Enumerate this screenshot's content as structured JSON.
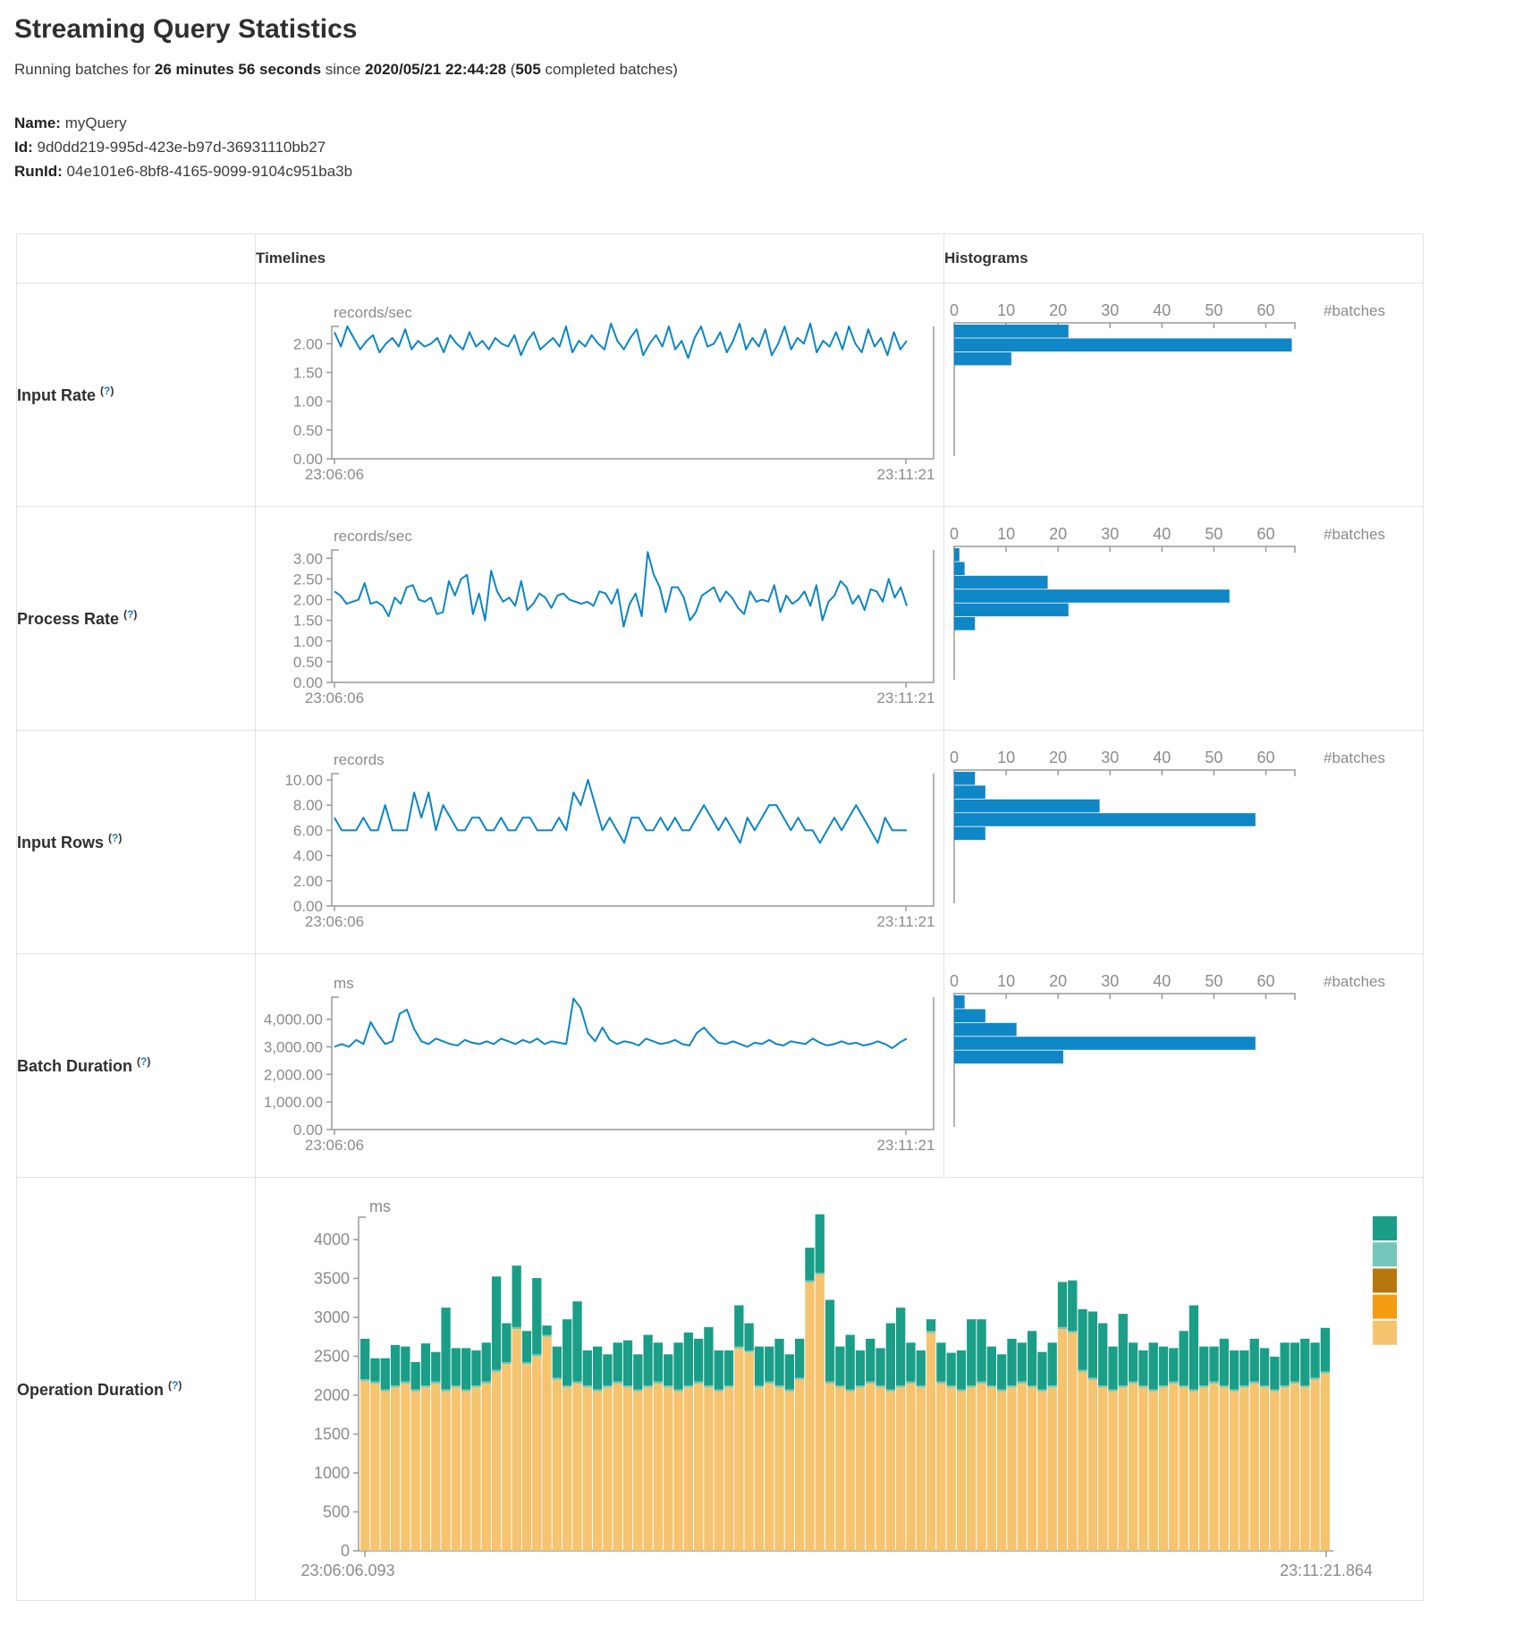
{
  "page": {
    "title": "Streaming Query Statistics"
  },
  "summary": {
    "prefix": "Running batches for ",
    "duration": "26 minutes 56 seconds",
    "middle": " since ",
    "start_time": "2020/05/21 22:44:28",
    "paren_open": " (",
    "completed_count": "505",
    "suffix": " completed batches)"
  },
  "query": {
    "name_label": "Name:",
    "name": " myQuery",
    "id_label": "Id:",
    "id": " 9d0dd219-995d-423e-b97d-36931110bb27",
    "runid_label": "RunId:",
    "runid": " 04e101e6-8bf8-4165-9099-9104c951ba3b"
  },
  "table": {
    "timelines_header": "Timelines",
    "histograms_header": "Histograms",
    "help_open": "(",
    "help_q": "?",
    "help_close": ")"
  },
  "rows": [
    {
      "label": "Input Rate "
    },
    {
      "label": "Process Rate "
    },
    {
      "label": "Input Rows "
    },
    {
      "label": "Batch Duration "
    },
    {
      "label": "Operation Duration "
    }
  ],
  "colors": {
    "line": "#0c85c5",
    "bar": "#0f86c6",
    "axis": "#999999",
    "tick_text": "#8b8b8b",
    "op_base": "#f6c36e",
    "op_sliver": "#74c7b8",
    "op_top": "#1a9e87",
    "legend": [
      "#1a9e87",
      "#74c7b8",
      "#b8770e",
      "#f39c12",
      "#f6c36e"
    ]
  },
  "chart_data": [
    {
      "name": "input-rate",
      "type": "line",
      "unit_label": "records/sec",
      "x_start": "23:06:06",
      "x_end": "23:11:21",
      "y_domain": [
        0,
        2.3
      ],
      "y_ticks": [
        [
          0,
          "0.00"
        ],
        [
          0.5,
          "0.50"
        ],
        [
          1,
          "1.00"
        ],
        [
          1.5,
          "1.50"
        ],
        [
          2,
          "2.00"
        ]
      ],
      "values": [
        2.2,
        1.95,
        2.3,
        2.1,
        1.9,
        2.05,
        2.15,
        1.85,
        2.0,
        2.1,
        1.95,
        2.25,
        1.9,
        2.05,
        1.95,
        2.0,
        2.1,
        1.85,
        2.15,
        2.0,
        1.9,
        2.2,
        1.95,
        2.05,
        1.9,
        2.1,
        2.0,
        1.95,
        2.15,
        1.8,
        2.05,
        2.2,
        1.9,
        2.0,
        2.1,
        1.95,
        2.3,
        1.85,
        2.05,
        1.95,
        2.15,
        2.0,
        1.9,
        2.35,
        2.05,
        1.9,
        2.1,
        2.25,
        1.8,
        2.0,
        2.15,
        1.95,
        2.3,
        1.9,
        2.05,
        1.75,
        2.1,
        2.3,
        1.95,
        2.0,
        2.2,
        1.85,
        2.05,
        2.35,
        1.9,
        2.1,
        1.95,
        2.25,
        1.8,
        2.0,
        2.3,
        1.9,
        2.1,
        2.0,
        2.35,
        1.85,
        2.05,
        1.95,
        2.2,
        1.9,
        2.3,
        2.0,
        1.85,
        2.25,
        1.95,
        2.1,
        1.8,
        2.2,
        1.9,
        2.05
      ],
      "histogram": {
        "type": "bar",
        "orientation": "horizontal",
        "axis_label": "#batches",
        "x_ticks": [
          0,
          10,
          20,
          30,
          40,
          50,
          60
        ],
        "x_max": 65.6,
        "values": [
          22,
          65,
          11
        ]
      }
    },
    {
      "name": "process-rate",
      "type": "line",
      "unit_label": "records/sec",
      "x_start": "23:06:06",
      "x_end": "23:11:21",
      "y_domain": [
        0,
        3.2
      ],
      "y_ticks": [
        [
          0,
          "0.00"
        ],
        [
          0.5,
          "0.50"
        ],
        [
          1,
          "1.00"
        ],
        [
          1.5,
          "1.50"
        ],
        [
          2,
          "2.00"
        ],
        [
          2.5,
          "2.50"
        ],
        [
          3,
          "3.00"
        ]
      ],
      "values": [
        2.2,
        2.1,
        1.9,
        1.95,
        2.0,
        2.4,
        1.9,
        1.95,
        1.85,
        1.6,
        2.05,
        1.9,
        2.3,
        2.35,
        2.0,
        1.95,
        2.05,
        1.65,
        1.7,
        2.45,
        2.1,
        2.5,
        2.6,
        1.65,
        2.15,
        1.5,
        2.7,
        2.2,
        1.95,
        2.05,
        1.85,
        2.45,
        1.75,
        1.9,
        2.15,
        2.05,
        1.8,
        2.1,
        2.15,
        2.0,
        1.95,
        1.9,
        1.95,
        1.85,
        2.2,
        2.15,
        1.9,
        2.25,
        1.35,
        1.9,
        2.15,
        1.6,
        3.15,
        2.6,
        2.3,
        1.7,
        2.3,
        2.3,
        2.05,
        1.5,
        1.7,
        2.1,
        2.2,
        2.3,
        1.95,
        2.2,
        2.05,
        1.8,
        1.65,
        2.2,
        1.95,
        2.0,
        1.95,
        2.35,
        1.7,
        2.1,
        1.9,
        2.0,
        2.2,
        1.85,
        2.35,
        1.5,
        1.95,
        2.1,
        2.45,
        2.3,
        1.9,
        2.1,
        1.75,
        2.25,
        2.2,
        1.95,
        2.5,
        2.05,
        2.3,
        1.85
      ],
      "histogram": {
        "type": "bar",
        "orientation": "horizontal",
        "axis_label": "#batches",
        "x_ticks": [
          0,
          10,
          20,
          30,
          40,
          50,
          60
        ],
        "x_max": 65.6,
        "values": [
          1,
          2,
          18,
          53,
          22,
          4
        ]
      }
    },
    {
      "name": "input-rows",
      "type": "line",
      "unit_label": "records",
      "x_start": "23:06:06",
      "x_end": "23:11:21",
      "y_domain": [
        0,
        10.5
      ],
      "y_ticks": [
        [
          0,
          "0.00"
        ],
        [
          2,
          "2.00"
        ],
        [
          4,
          "4.00"
        ],
        [
          6,
          "6.00"
        ],
        [
          8,
          "8.00"
        ],
        [
          10,
          "10.00"
        ]
      ],
      "values": [
        7,
        6,
        6,
        6,
        7,
        6,
        6,
        8,
        6,
        6,
        6,
        9,
        7,
        9,
        6,
        8,
        7,
        6,
        6,
        7,
        7,
        6,
        6,
        7,
        6,
        6,
        7,
        7,
        6,
        6,
        6,
        7,
        6,
        9,
        8,
        10,
        8,
        6,
        7,
        6,
        5,
        7,
        7,
        6,
        6,
        7,
        6,
        7,
        6,
        6,
        7,
        8,
        7,
        6,
        7,
        6,
        5,
        7,
        6,
        7,
        8,
        8,
        7,
        6,
        7,
        6,
        6,
        5,
        6,
        7,
        6,
        7,
        8,
        7,
        6,
        5,
        7,
        6,
        6,
        6
      ],
      "histogram": {
        "type": "bar",
        "orientation": "horizontal",
        "axis_label": "#batches",
        "x_ticks": [
          0,
          10,
          20,
          30,
          40,
          50,
          60
        ],
        "x_max": 65.6,
        "values": [
          4,
          6,
          28,
          58,
          6
        ]
      }
    },
    {
      "name": "batch-duration",
      "type": "line",
      "unit_label": "ms",
      "x_start": "23:06:06",
      "x_end": "23:11:21",
      "y_domain": [
        0,
        4800
      ],
      "y_ticks": [
        [
          0,
          "0.00"
        ],
        [
          1000,
          "1,000.00"
        ],
        [
          2000,
          "2,000.00"
        ],
        [
          3000,
          "3,000.00"
        ],
        [
          4000,
          "4,000.00"
        ]
      ],
      "values": [
        3000,
        3100,
        3000,
        3250,
        3100,
        3900,
        3450,
        3100,
        3200,
        4200,
        4350,
        3650,
        3200,
        3100,
        3300,
        3200,
        3100,
        3050,
        3250,
        3150,
        3100,
        3200,
        3100,
        3300,
        3200,
        3100,
        3250,
        3150,
        3300,
        3100,
        3200,
        3150,
        3100,
        4750,
        4400,
        3500,
        3200,
        3700,
        3250,
        3100,
        3200,
        3150,
        3050,
        3300,
        3200,
        3100,
        3150,
        3250,
        3100,
        3050,
        3500,
        3700,
        3400,
        3150,
        3100,
        3200,
        3100,
        3000,
        3150,
        3100,
        3250,
        3100,
        3050,
        3200,
        3150,
        3100,
        3300,
        3150,
        3050,
        3100,
        3200,
        3100,
        3150,
        3050,
        3100,
        3200,
        3100,
        2950,
        3150,
        3300
      ],
      "histogram": {
        "type": "bar",
        "orientation": "horizontal",
        "axis_label": "#batches",
        "x_ticks": [
          0,
          10,
          20,
          30,
          40,
          50,
          60
        ],
        "x_max": 65.6,
        "values": [
          2,
          6,
          12,
          58,
          21
        ]
      }
    },
    {
      "name": "operation-duration",
      "type": "stacked-bar",
      "unit_label": "ms",
      "x_start": "23:06:06.093",
      "x_end": "23:11:21.864",
      "y_domain": [
        0,
        4800
      ],
      "y_ticks": [
        [
          0,
          "0"
        ],
        [
          500,
          "500"
        ],
        [
          1000,
          "1000"
        ],
        [
          1500,
          "1500"
        ],
        [
          2000,
          "2000"
        ],
        [
          2500,
          "2500"
        ],
        [
          3000,
          "3000"
        ],
        [
          3500,
          "3500"
        ],
        [
          4000,
          "4000"
        ]
      ],
      "sliver": 25,
      "base": [
        2180,
        2150,
        2050,
        2100,
        2150,
        2050,
        2100,
        2150,
        2050,
        2100,
        2050,
        2100,
        2150,
        2300,
        2400,
        2850,
        2400,
        2500,
        2750,
        2200,
        2100,
        2150,
        2100,
        2050,
        2100,
        2150,
        2100,
        2050,
        2100,
        2150,
        2100,
        2050,
        2100,
        2150,
        2100,
        2050,
        2100,
        2600,
        2550,
        2100,
        2150,
        2100,
        2050,
        2200,
        3450,
        3550,
        2150,
        2100,
        2050,
        2100,
        2150,
        2100,
        2050,
        2100,
        2150,
        2100,
        2800,
        2150,
        2100,
        2050,
        2100,
        2150,
        2100,
        2050,
        2100,
        2150,
        2100,
        2050,
        2100,
        2850,
        2800,
        2300,
        2200,
        2100,
        2050,
        2100,
        2150,
        2100,
        2050,
        2100,
        2150,
        2100,
        2050,
        2100,
        2150,
        2100,
        2050,
        2100,
        2150,
        2100,
        2050,
        2100,
        2150,
        2100,
        2200,
        2280
      ],
      "green": [
        520,
        300,
        400,
        520,
        450,
        350,
        540,
        380,
        1050,
        480,
        530,
        450,
        500,
        1200,
        500,
        790,
        400,
        980,
        120,
        400,
        850,
        1030,
        450,
        550,
        400,
        500,
        580,
        450,
        650,
        500,
        400,
        600,
        680,
        550,
        750,
        500,
        450,
        530,
        350,
        500,
        450,
        600,
        450,
        500,
        420,
        750,
        1050,
        500,
        700,
        450,
        550,
        480,
        850,
        1000,
        500,
        450,
        150,
        500,
        420,
        500,
        850,
        800,
        500,
        450,
        600,
        500,
        700,
        480,
        550,
        580,
        650,
        780,
        850,
        800,
        550,
        920,
        500,
        450,
        600,
        500,
        430,
        700,
        1080,
        500,
        450,
        600,
        500,
        450,
        550,
        480,
        420,
        550,
        500,
        600,
        450,
        560
      ]
    }
  ]
}
